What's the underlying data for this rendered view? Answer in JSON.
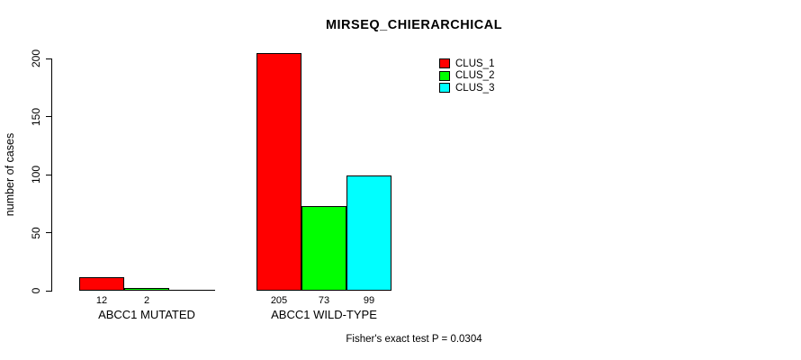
{
  "chart_data": {
    "type": "bar",
    "title": "MIRSEQ_CHIERARCHICAL",
    "xlabel": "",
    "ylabel": "number of cases",
    "categories": [
      "ABCC1 MUTATED",
      "ABCC1 WILD-TYPE"
    ],
    "series": [
      {
        "name": "CLUS_1",
        "color": "#ff0000",
        "values": [
          12,
          205
        ]
      },
      {
        "name": "CLUS_2",
        "color": "#00ff00",
        "values": [
          2,
          73
        ]
      },
      {
        "name": "CLUS_3",
        "color": "#00ffff",
        "values": [
          0,
          99
        ]
      }
    ],
    "bar_value_labels": [
      [
        "12",
        "205"
      ],
      [
        "2",
        "73"
      ],
      [
        "",
        "99"
      ]
    ],
    "yticks": [
      0,
      50,
      100,
      150,
      200
    ],
    "ylim": [
      0,
      205
    ],
    "grid": false,
    "legend": {
      "position": "top-right",
      "entries": [
        "CLUS_1",
        "CLUS_2",
        "CLUS_3"
      ]
    },
    "annotation": "Fisher's exact test P = 0.0304",
    "axis_color": "#000000",
    "background_color": "#ffffff"
  }
}
